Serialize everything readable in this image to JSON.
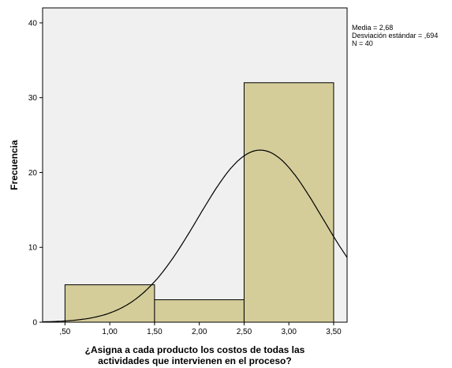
{
  "chart_data": {
    "type": "bar",
    "subtype": "histogram",
    "bins": [
      {
        "from": 0.5,
        "to": 1.5,
        "count": 5
      },
      {
        "from": 1.5,
        "to": 2.5,
        "count": 3
      },
      {
        "from": 2.5,
        "to": 3.5,
        "count": 32
      }
    ],
    "normal_curve": {
      "mean": 2.68,
      "sd": 0.694,
      "n": 40,
      "bin_width": 1.0
    },
    "xlim": [
      0.25,
      3.65
    ],
    "ylim": [
      0,
      42
    ],
    "xticks": [
      {
        "value": 0.5,
        "label": ",50"
      },
      {
        "value": 1.0,
        "label": "1,00"
      },
      {
        "value": 1.5,
        "label": "1,50"
      },
      {
        "value": 2.0,
        "label": "2,00"
      },
      {
        "value": 2.5,
        "label": "2,50"
      },
      {
        "value": 3.0,
        "label": "3,00"
      },
      {
        "value": 3.5,
        "label": "3,50"
      }
    ],
    "yticks": [
      {
        "value": 0,
        "label": "0"
      },
      {
        "value": 10,
        "label": "10"
      },
      {
        "value": 20,
        "label": "20"
      },
      {
        "value": 30,
        "label": "30"
      },
      {
        "value": 40,
        "label": "40"
      }
    ],
    "ylabel": "Frecuencia",
    "xlabel_lines": [
      "¿Asigna a cada producto los costos de todas las",
      "actividades que intervienen en el proceso?"
    ],
    "stats_lines": [
      "Media = 2,68",
      "Desviación estándar = ,694",
      "N = 40"
    ],
    "grid": false,
    "colors": {
      "plot_background": "#f0f0f0",
      "bar_fill": "#d4cd9a",
      "bar_stroke": "#000000",
      "curve": "#000000",
      "axis": "#000000"
    }
  }
}
